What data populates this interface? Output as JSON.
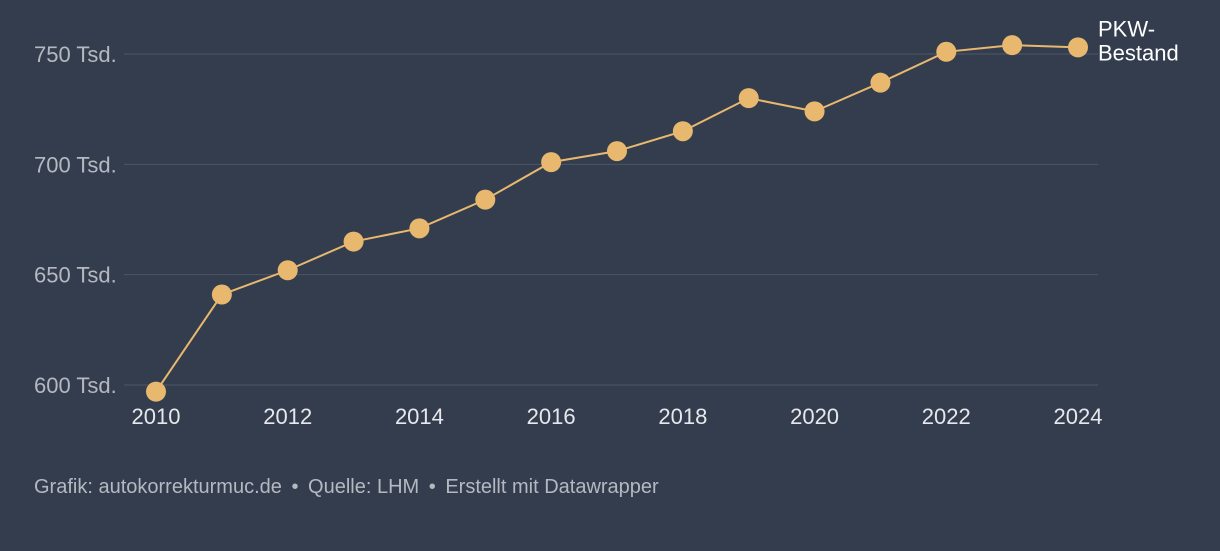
{
  "chart_data": {
    "type": "line",
    "x": [
      2010,
      2011,
      2012,
      2013,
      2014,
      2015,
      2016,
      2017,
      2018,
      2019,
      2020,
      2021,
      2022,
      2023,
      2024
    ],
    "series": [
      {
        "name": "PKW-Bestand",
        "name_lines": [
          "PKW-",
          "Bestand"
        ],
        "values": [
          597,
          641,
          652,
          665,
          671,
          684,
          701,
          706,
          715,
          730,
          724,
          737,
          751,
          754,
          753
        ]
      }
    ],
    "ylim": [
      600,
      750
    ],
    "y_ticks": [
      {
        "value": 750,
        "label": "750 Tsd."
      },
      {
        "value": 700,
        "label": "700 Tsd."
      },
      {
        "value": 650,
        "label": "650 Tsd."
      },
      {
        "value": 600,
        "label": "600 Tsd."
      }
    ],
    "x_ticks": [
      2010,
      2012,
      2014,
      2016,
      2018,
      2020,
      2022,
      2024
    ],
    "grid": true,
    "colors": {
      "line": "#e8b86f",
      "grid": "#4d5666",
      "background": "#343d4e"
    }
  },
  "footer": {
    "grafik": "Grafik: autokorrekturmuc.de",
    "quelle": "Quelle: LHM",
    "erstellt": "Erstellt mit Datawrapper",
    "separator": "•"
  }
}
